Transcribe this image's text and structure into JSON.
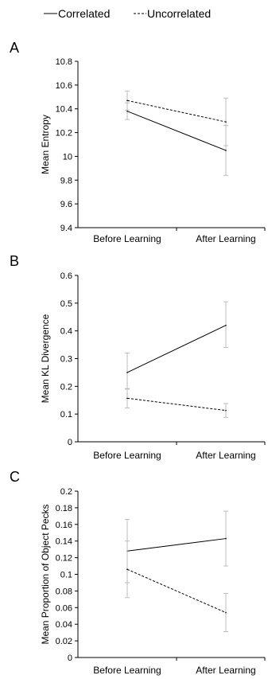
{
  "legend": {
    "entries": [
      {
        "name": "Correlated",
        "style": "solid"
      },
      {
        "name": "Uncorrelated",
        "style": "dashed"
      }
    ]
  },
  "chart_data": [
    {
      "type": "line",
      "panel_label": "A",
      "ylabel": "Mean Entropy",
      "categories": [
        "Before Learning",
        "After Learning"
      ],
      "ylim": [
        9.4,
        10.8
      ],
      "yticks": [
        9.4,
        9.6,
        9.8,
        10,
        10.2,
        10.4,
        10.6,
        10.8
      ],
      "series": [
        {
          "name": "Correlated",
          "values": [
            10.38,
            10.05
          ],
          "err_low": [
            10.31,
            9.84
          ],
          "err_high": [
            10.45,
            10.26
          ]
        },
        {
          "name": "Uncorrelated",
          "values": [
            10.47,
            10.29
          ],
          "err_low": [
            10.39,
            10.09
          ],
          "err_high": [
            10.55,
            10.49
          ]
        }
      ]
    },
    {
      "type": "line",
      "panel_label": "B",
      "ylabel": "Mean KL Divergence",
      "categories": [
        "Before Learning",
        "After Learning"
      ],
      "ylim": [
        0,
        0.6
      ],
      "yticks": [
        0,
        0.1,
        0.2,
        0.3,
        0.4,
        0.5,
        0.6
      ],
      "series": [
        {
          "name": "Correlated",
          "values": [
            0.25,
            0.42
          ],
          "err_low": [
            0.19,
            0.34
          ],
          "err_high": [
            0.32,
            0.505
          ]
        },
        {
          "name": "Uncorrelated",
          "values": [
            0.157,
            0.113
          ],
          "err_low": [
            0.122,
            0.088
          ],
          "err_high": [
            0.192,
            0.138
          ]
        }
      ]
    },
    {
      "type": "line",
      "panel_label": "C",
      "ylabel": "Mean Proportion of Object Pecks",
      "categories": [
        "Before Learning",
        "After Learning"
      ],
      "ylim": [
        0,
        0.2
      ],
      "yticks": [
        0,
        0.02,
        0.04,
        0.06,
        0.08,
        0.1,
        0.12,
        0.14,
        0.16,
        0.18,
        0.2
      ],
      "series": [
        {
          "name": "Correlated",
          "values": [
            0.128,
            0.143
          ],
          "err_low": [
            0.09,
            0.11
          ],
          "err_high": [
            0.166,
            0.176
          ]
        },
        {
          "name": "Uncorrelated",
          "values": [
            0.106,
            0.054
          ],
          "err_low": [
            0.072,
            0.031
          ],
          "err_high": [
            0.14,
            0.077
          ]
        }
      ]
    }
  ]
}
